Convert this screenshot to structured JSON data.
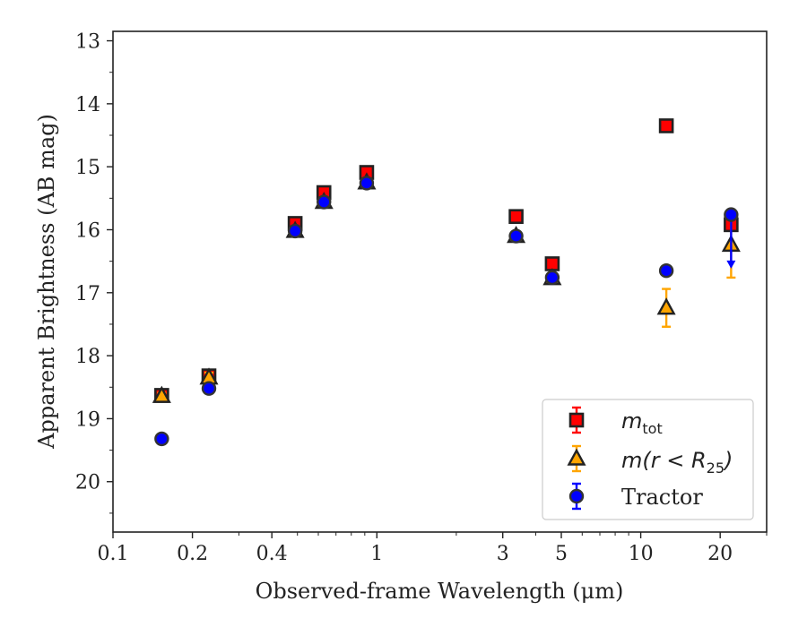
{
  "chart_data": {
    "type": "scatter",
    "xlabel": "Observed-frame Wavelength (μm)",
    "ylabel": "Apparent Brightness (AB mag)",
    "x_scale": "log",
    "xlim": [
      0.1,
      30
    ],
    "ylim": [
      20.8,
      12.85
    ],
    "y_inverted": true,
    "x_ticks": [
      0.1,
      0.2,
      0.4,
      1,
      3,
      5,
      10,
      20
    ],
    "x_tick_labels": [
      "0.1",
      "0.2",
      "0.4",
      "1",
      "3",
      "5",
      "10",
      "20"
    ],
    "y_ticks": [
      13,
      14,
      15,
      16,
      17,
      18,
      19,
      20
    ],
    "y_tick_labels": [
      "13",
      "14",
      "15",
      "16",
      "17",
      "18",
      "19",
      "20"
    ],
    "grid": false,
    "legend_position": "lower-right",
    "series": [
      {
        "key": "mtot",
        "legend_base": "m",
        "legend_sub": "tot",
        "marker": "square",
        "color": "#ff0000",
        "edge_color": "#222222",
        "errbar_color": "#ff0000",
        "points": [
          {
            "x": 0.153,
            "y": 18.63,
            "err": 0.05
          },
          {
            "x": 0.231,
            "y": 18.32,
            "err": 0.05
          },
          {
            "x": 0.49,
            "y": 15.9,
            "err": 0.05
          },
          {
            "x": 0.63,
            "y": 15.41,
            "err": 0.05
          },
          {
            "x": 0.915,
            "y": 15.09,
            "err": 0.05
          },
          {
            "x": 3.37,
            "y": 15.79,
            "err": 0.05
          },
          {
            "x": 4.62,
            "y": 16.54,
            "err": 0.05
          },
          {
            "x": 12.5,
            "y": 14.35,
            "err": 0.05
          },
          {
            "x": 22.0,
            "y": 15.92,
            "err": 0.05
          }
        ]
      },
      {
        "key": "mr25",
        "legend_base": "m",
        "legend_paren": "(r < R",
        "legend_sub": "25",
        "legend_close": ")",
        "marker": "triangle",
        "color": "#ffa500",
        "edge_color": "#222222",
        "errbar_color": "#ffa500",
        "points": [
          {
            "x": 0.153,
            "y": 18.64,
            "err": 0.05
          },
          {
            "x": 0.231,
            "y": 18.35,
            "err": 0.08
          },
          {
            "x": 0.49,
            "y": 16.02,
            "err": 0.04
          },
          {
            "x": 0.63,
            "y": 15.56,
            "err": 0.04
          },
          {
            "x": 0.915,
            "y": 15.25,
            "err": 0.04
          },
          {
            "x": 3.37,
            "y": 16.1,
            "err": 0.05
          },
          {
            "x": 4.62,
            "y": 16.77,
            "err": 0.05
          },
          {
            "x": 12.5,
            "y": 17.24,
            "err": 0.3
          },
          {
            "x": 22.0,
            "y": 16.24,
            "err": 0.52
          }
        ]
      },
      {
        "key": "tractor",
        "legend_label": "Tractor",
        "marker": "circle",
        "color": "#0000ff",
        "edge_color": "#333333",
        "errbar_color": "#0000ff",
        "points": [
          {
            "x": 0.153,
            "y": 19.32,
            "err": 0.05
          },
          {
            "x": 0.231,
            "y": 18.52,
            "err": 0.05
          },
          {
            "x": 0.49,
            "y": 16.02,
            "err": 0.05
          },
          {
            "x": 0.63,
            "y": 15.56,
            "err": 0.05
          },
          {
            "x": 0.915,
            "y": 15.26,
            "err": 0.05
          },
          {
            "x": 3.37,
            "y": 16.1,
            "err": 0.05
          },
          {
            "x": 4.62,
            "y": 16.76,
            "err": 0.05
          },
          {
            "x": 12.5,
            "y": 16.65,
            "err": 0.05
          },
          {
            "x": 22.0,
            "y": 15.76,
            "err": 0.05,
            "upper_limit": 16.56
          }
        ]
      }
    ]
  }
}
